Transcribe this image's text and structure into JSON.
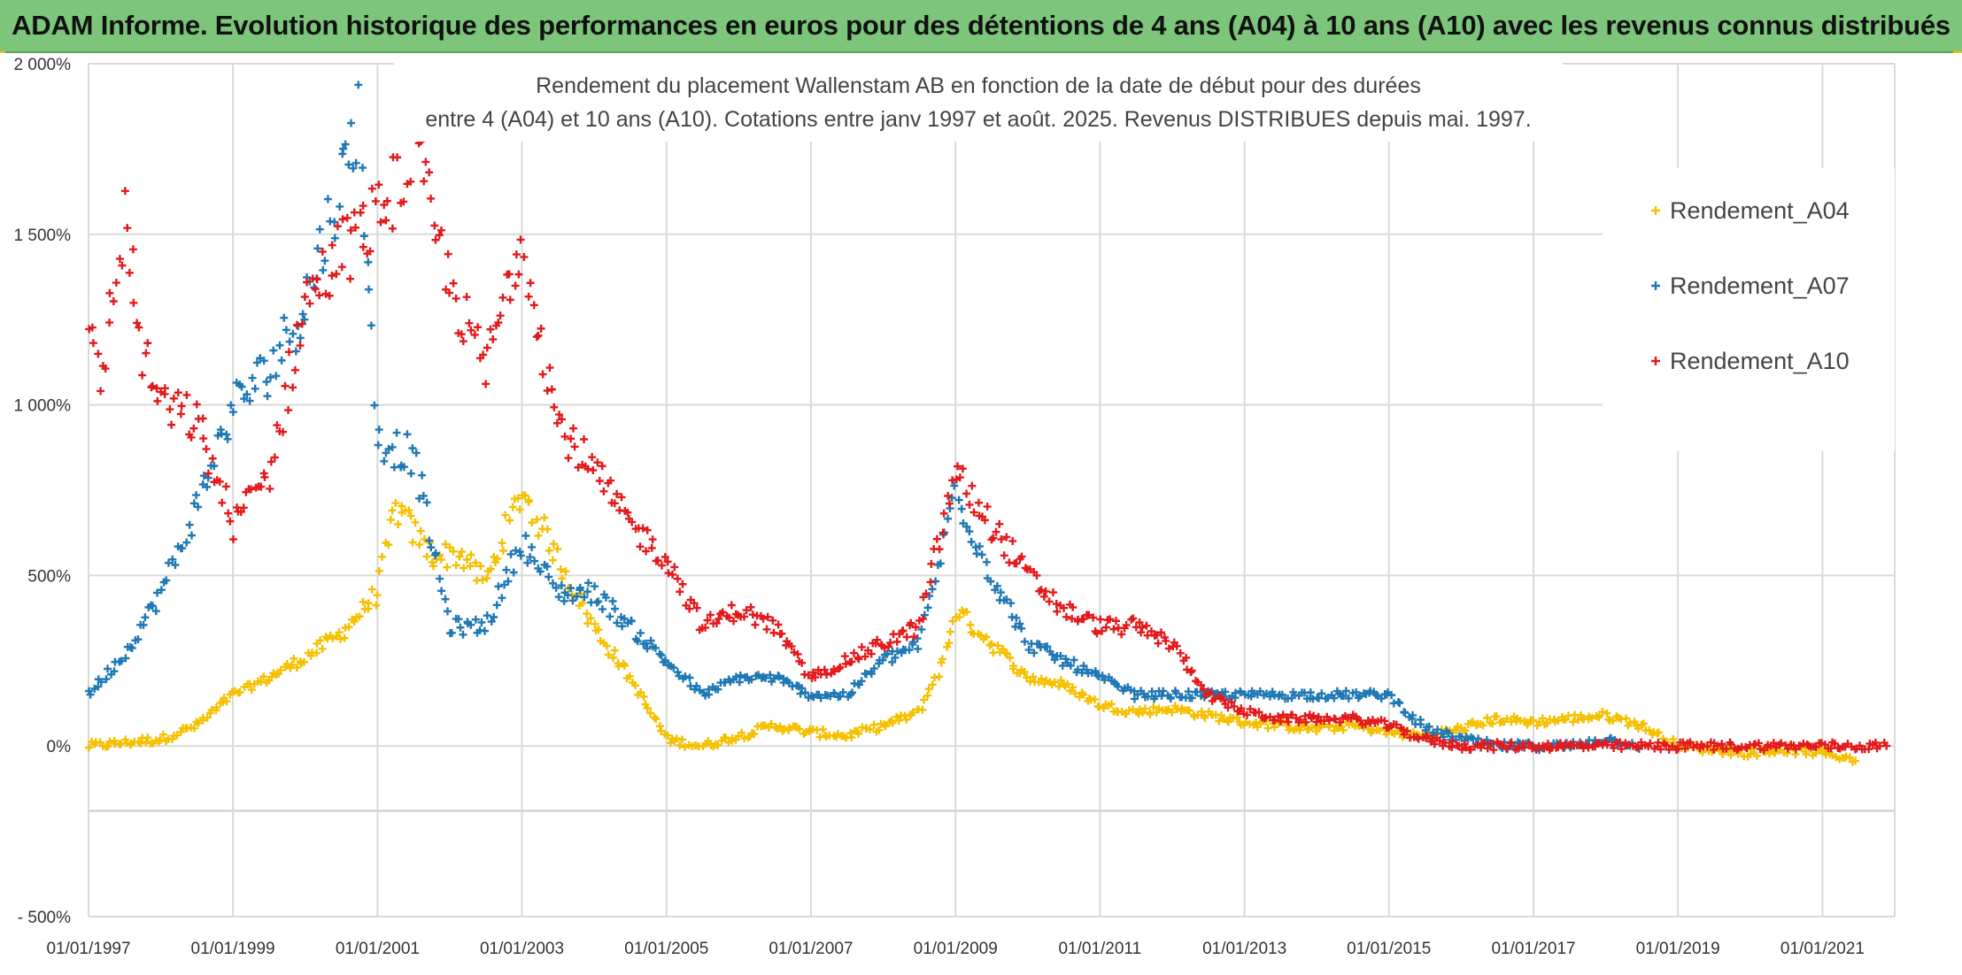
{
  "header": {
    "title": "ADAM Informe. Evolution historique des performances en euros pour des détentions de 4 ans (A04) à 10 ans (A10) avec les revenus connus distribués"
  },
  "chart_data": {
    "type": "scatter",
    "title_lines": [
      "Rendement du placement Wallenstam AB en fonction de la date de début pour des durées",
      "entre 4 (A04) et 10 ans (A10). Cotations entre janv 1997 et août. 2025. Revenus DISTRIBUES depuis mai. 1997."
    ],
    "xlabel": "",
    "ylabel": "",
    "xlim": [
      "1997-01-01",
      "2021-12-31"
    ],
    "ylim": [
      -500,
      2000
    ],
    "x_ticks": [
      "01/01/1997",
      "01/01/1999",
      "01/01/2001",
      "01/01/2003",
      "01/01/2005",
      "01/01/2007",
      "01/01/2009",
      "01/01/2011",
      "01/01/2013",
      "01/01/2015",
      "01/01/2017",
      "01/01/2019",
      "01/01/2021"
    ],
    "y_ticks": [
      "- 500%",
      "0%",
      "500%",
      "1 000%",
      "1 500%",
      "2 000%"
    ],
    "y_tick_values": [
      -500,
      0,
      500,
      1000,
      1500,
      2000
    ],
    "grid": true,
    "legend_position": "right",
    "marker": "+",
    "series": [
      {
        "name": "Rendement_A04",
        "color": "#f5c000",
        "points": [
          [
            "1997-01-01",
            0
          ],
          [
            "1997-07-01",
            10
          ],
          [
            "1998-01-01",
            20
          ],
          [
            "1998-07-01",
            60
          ],
          [
            "1999-01-01",
            150
          ],
          [
            "1999-07-01",
            200
          ],
          [
            "2000-01-01",
            260
          ],
          [
            "2000-07-01",
            330
          ],
          [
            "2001-01-01",
            450
          ],
          [
            "2001-04-01",
            700
          ],
          [
            "2001-10-01",
            560
          ],
          [
            "2002-03-01",
            560
          ],
          [
            "2002-07-01",
            480
          ],
          [
            "2003-01-01",
            750
          ],
          [
            "2003-07-01",
            550
          ],
          [
            "2004-01-01",
            350
          ],
          [
            "2004-07-01",
            200
          ],
          [
            "2005-01-01",
            20
          ],
          [
            "2005-07-01",
            0
          ],
          [
            "2006-01-01",
            30
          ],
          [
            "2006-07-01",
            60
          ],
          [
            "2007-01-01",
            40
          ],
          [
            "2007-07-01",
            30
          ],
          [
            "2008-01-01",
            60
          ],
          [
            "2008-07-01",
            100
          ],
          [
            "2008-11-01",
            250
          ],
          [
            "2009-01-01",
            400
          ],
          [
            "2009-07-01",
            300
          ],
          [
            "2010-01-01",
            200
          ],
          [
            "2010-07-01",
            180
          ],
          [
            "2011-01-01",
            120
          ],
          [
            "2011-07-01",
            100
          ],
          [
            "2012-01-01",
            110
          ],
          [
            "2012-07-01",
            90
          ],
          [
            "2013-01-01",
            70
          ],
          [
            "2013-07-01",
            60
          ],
          [
            "2014-01-01",
            50
          ],
          [
            "2014-07-01",
            60
          ],
          [
            "2015-01-01",
            40
          ],
          [
            "2015-07-01",
            30
          ],
          [
            "2016-01-01",
            50
          ],
          [
            "2016-07-01",
            80
          ],
          [
            "2017-01-01",
            70
          ],
          [
            "2017-07-01",
            80
          ],
          [
            "2018-01-01",
            90
          ],
          [
            "2018-07-01",
            60
          ],
          [
            "2019-01-01",
            0
          ],
          [
            "2019-07-01",
            -10
          ],
          [
            "2020-01-01",
            -20
          ],
          [
            "2020-07-01",
            -10
          ],
          [
            "2021-01-01",
            -20
          ],
          [
            "2021-07-01",
            -40
          ]
        ]
      },
      {
        "name": "Rendement_A07",
        "color": "#1f78b4",
        "points": [
          [
            "1997-01-01",
            150
          ],
          [
            "1997-07-01",
            270
          ],
          [
            "1998-01-01",
            450
          ],
          [
            "1998-07-01",
            700
          ],
          [
            "1999-01-01",
            1000
          ],
          [
            "1999-07-01",
            1100
          ],
          [
            "2000-01-01",
            1300
          ],
          [
            "2000-07-01",
            1650
          ],
          [
            "2000-10-01",
            1850
          ],
          [
            "2001-01-01",
            900
          ],
          [
            "2001-07-01",
            850
          ],
          [
            "2002-01-01",
            350
          ],
          [
            "2002-07-01",
            350
          ],
          [
            "2003-01-01",
            600
          ],
          [
            "2003-07-01",
            450
          ],
          [
            "2004-01-01",
            450
          ],
          [
            "2004-07-01",
            350
          ],
          [
            "2005-01-01",
            250
          ],
          [
            "2005-07-01",
            150
          ],
          [
            "2006-01-01",
            200
          ],
          [
            "2006-07-01",
            200
          ],
          [
            "2007-01-01",
            150
          ],
          [
            "2007-07-01",
            150
          ],
          [
            "2008-01-01",
            250
          ],
          [
            "2008-07-01",
            300
          ],
          [
            "2009-01-01",
            750
          ],
          [
            "2009-07-01",
            500
          ],
          [
            "2010-01-01",
            300
          ],
          [
            "2010-07-01",
            250
          ],
          [
            "2011-01-01",
            200
          ],
          [
            "2011-07-01",
            150
          ],
          [
            "2012-01-01",
            150
          ],
          [
            "2012-07-01",
            150
          ],
          [
            "2013-01-01",
            150
          ],
          [
            "2013-07-01",
            150
          ],
          [
            "2014-01-01",
            150
          ],
          [
            "2014-07-01",
            150
          ],
          [
            "2015-01-01",
            150
          ],
          [
            "2015-07-01",
            50
          ],
          [
            "2016-01-01",
            20
          ],
          [
            "2016-07-01",
            0
          ],
          [
            "2017-01-01",
            0
          ],
          [
            "2017-07-01",
            0
          ],
          [
            "2018-01-01",
            20
          ],
          [
            "2018-07-01",
            0
          ]
        ]
      },
      {
        "name": "Rendement_A10",
        "color": "#e31a1c",
        "points": [
          [
            "1997-01-01",
            1200
          ],
          [
            "1997-03-01",
            1050
          ],
          [
            "1997-07-01",
            1550
          ],
          [
            "1997-10-01",
            1150
          ],
          [
            "1998-01-01",
            1000
          ],
          [
            "1998-07-01",
            950
          ],
          [
            "1999-01-01",
            650
          ],
          [
            "1999-07-01",
            800
          ],
          [
            "2000-01-01",
            1300
          ],
          [
            "2000-07-01",
            1450
          ],
          [
            "2001-01-01",
            1550
          ],
          [
            "2001-07-01",
            1750
          ],
          [
            "2002-01-01",
            1350
          ],
          [
            "2002-07-01",
            1100
          ],
          [
            "2003-01-01",
            1500
          ],
          [
            "2003-07-01",
            950
          ],
          [
            "2004-01-01",
            800
          ],
          [
            "2004-07-01",
            650
          ],
          [
            "2005-01-01",
            550
          ],
          [
            "2005-07-01",
            350
          ],
          [
            "2006-01-01",
            400
          ],
          [
            "2006-07-01",
            350
          ],
          [
            "2007-01-01",
            200
          ],
          [
            "2007-07-01",
            250
          ],
          [
            "2008-01-01",
            300
          ],
          [
            "2008-07-01",
            350
          ],
          [
            "2009-01-01",
            800
          ],
          [
            "2009-07-01",
            650
          ],
          [
            "2010-01-01",
            500
          ],
          [
            "2010-07-01",
            400
          ],
          [
            "2011-01-01",
            350
          ],
          [
            "2011-07-01",
            350
          ],
          [
            "2012-01-01",
            300
          ],
          [
            "2012-07-01",
            150
          ],
          [
            "2013-01-01",
            100
          ],
          [
            "2013-07-01",
            80
          ],
          [
            "2014-01-01",
            80
          ],
          [
            "2014-07-01",
            80
          ],
          [
            "2015-01-01",
            60
          ],
          [
            "2015-07-01",
            20
          ],
          [
            "2016-01-01",
            0
          ],
          [
            "2017-01-01",
            0
          ],
          [
            "2018-01-01",
            0
          ],
          [
            "2019-01-01",
            0
          ],
          [
            "2020-01-01",
            0
          ],
          [
            "2021-01-01",
            0
          ],
          [
            "2021-12-01",
            0
          ]
        ]
      }
    ]
  }
}
